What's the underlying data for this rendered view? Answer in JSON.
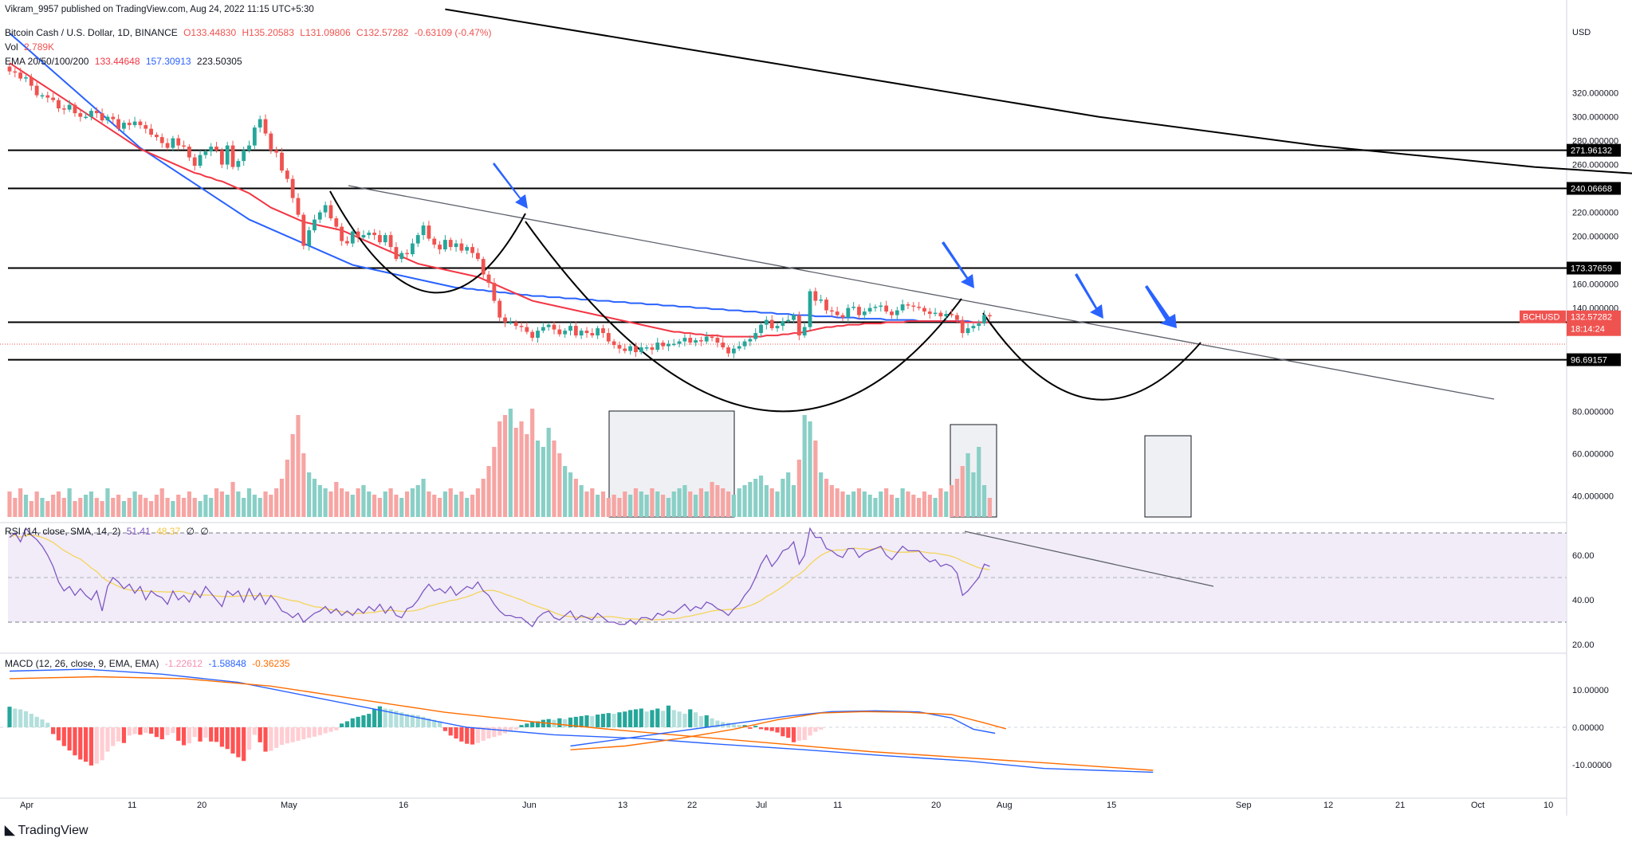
{
  "header": {
    "publisher": "Vikram_9957 published on TradingView.com, Aug 24, 2022 11:15 UTC+5:30",
    "symbol_line": "Bitcoin Cash / U.S. Dollar, 1D, BINANCE",
    "ohlc": {
      "o": "O133.44830",
      "h": "H135.20583",
      "l": "L131.09806",
      "c": "C132.57282",
      "chg": "-0.63109 (-0.47%)"
    },
    "vol_label": "Vol",
    "vol_value": "2.789K",
    "ema_label": "EMA 20/50/100/200",
    "ema_values": [
      "133.44648",
      "157.30913",
      "223.50305"
    ]
  },
  "colors": {
    "up": "#26a69a",
    "down": "#ef5350",
    "ema50": "#f23645",
    "ema100": "#2962ff",
    "ema200": "#000000",
    "arrow": "#2962ff",
    "rsi_line": "#7e57c2",
    "rsi_sma": "#f5d45a",
    "macd_line": "#2962ff",
    "signal_line": "#ff6d00",
    "rsi_band": "#ede7f6"
  },
  "price_axis": {
    "currency": "USD",
    "ticks": [
      "320.000000",
      "300.000000",
      "280.000000",
      "260.000000",
      "220.000000",
      "200.000000",
      "160.000000",
      "140.000000",
      "80.000000",
      "60.000000",
      "40.000000"
    ],
    "levels": [
      "271.96132",
      "240.06668",
      "173.37659",
      "128.09591",
      "96.69157"
    ],
    "current_symbol": "BCHUSD",
    "current_price": "132.57282",
    "countdown": "18:14:24"
  },
  "rsi": {
    "legend": "RSI (14, close, SMA, 14, 2)",
    "values": [
      "51.41",
      "48.37",
      "∅",
      "∅"
    ],
    "ticks": [
      "60.00",
      "40.00",
      "20.00"
    ]
  },
  "macd": {
    "legend": "MACD (12, 26, close, 9, EMA, EMA)",
    "values": [
      "-1.22612",
      "-1.58848",
      "-0.36235"
    ],
    "ticks": [
      "10.00000",
      "0.00000",
      "-10.00000"
    ]
  },
  "time_axis": [
    "Apr",
    "11",
    "20",
    "May",
    "16",
    "Jun",
    "13",
    "22",
    "Jul",
    "11",
    "20",
    "Aug",
    "15",
    "Sep",
    "12",
    "21",
    "Oct",
    "10"
  ],
  "footer": {
    "brand": "TradingView"
  },
  "chart_data": {
    "type": "candlestick",
    "title": "Bitcoin Cash / U.S. Dollar, 1D, BINANCE",
    "ylim": [
      85,
      325
    ],
    "horizontal_levels": [
      271.96132,
      240.06668,
      173.37659,
      128.09591,
      96.69157
    ],
    "current_price": 132.57282,
    "closes": [
      338,
      337,
      332,
      333,
      326,
      318,
      318,
      316,
      314,
      307,
      306,
      310,
      303,
      300,
      300,
      305,
      303,
      297,
      300,
      298,
      290,
      295,
      293,
      296,
      293,
      290,
      285,
      283,
      278,
      274,
      282,
      276,
      275,
      266,
      259,
      268,
      271,
      275,
      272,
      260,
      276,
      258,
      263,
      272,
      276,
      291,
      298,
      286,
      272,
      270,
      255,
      248,
      232,
      218,
      192,
      205,
      214,
      220,
      226,
      215,
      208,
      196,
      194,
      204,
      199,
      201,
      203,
      201,
      195,
      201,
      191,
      181,
      186,
      185,
      194,
      201,
      209,
      198,
      193,
      189,
      197,
      191,
      194,
      188,
      191,
      186,
      181,
      168,
      161,
      146,
      132,
      128,
      128,
      125,
      124,
      120,
      115,
      121,
      124,
      126,
      122,
      118,
      121,
      125,
      117,
      121,
      119,
      117,
      123,
      119,
      112,
      109,
      106,
      104,
      108,
      103,
      107,
      107,
      105,
      111,
      108,
      110,
      110,
      112,
      115,
      111,
      113,
      112,
      116,
      115,
      111,
      107,
      102,
      106,
      108,
      112,
      114,
      119,
      126,
      130,
      123,
      125,
      129,
      130,
      134,
      117,
      124,
      154,
      146,
      147,
      138,
      137,
      134,
      132,
      140,
      141,
      134,
      137,
      140,
      141,
      142,
      137,
      134,
      138,
      143,
      142,
      141,
      140,
      137,
      135,
      136,
      133,
      135,
      134,
      130,
      119,
      123,
      125,
      127,
      134,
      133
    ],
    "ema50": [
      345,
      342,
      339,
      336,
      333,
      330,
      327,
      324,
      321,
      318,
      315,
      312,
      309,
      306,
      303,
      300,
      297,
      294,
      291,
      288,
      285,
      282,
      279,
      276,
      273,
      271,
      269,
      267,
      265,
      263,
      261,
      259,
      257,
      255,
      253,
      252,
      250,
      249,
      247,
      246,
      244,
      242,
      240,
      238,
      236,
      233,
      230,
      227,
      224,
      222,
      220,
      218,
      216,
      214,
      212,
      211,
      210,
      209,
      208,
      207,
      206,
      205,
      203,
      201,
      199,
      197,
      195,
      193,
      191,
      189,
      187,
      185,
      183,
      181,
      179,
      177,
      176,
      175,
      174,
      173,
      172,
      171,
      170,
      169,
      168,
      167,
      166,
      164,
      162,
      160,
      158,
      156,
      154,
      152,
      150,
      148,
      146,
      145,
      144,
      143,
      142,
      141,
      140,
      139,
      138,
      137,
      136,
      135,
      134,
      133,
      132,
      131,
      130,
      129,
      128,
      127,
      126,
      125,
      124,
      123,
      122,
      121,
      120,
      120,
      119,
      119,
      118,
      118,
      117,
      117,
      117,
      116,
      116,
      116,
      116,
      116,
      116,
      116,
      116,
      117,
      117,
      117,
      118,
      118,
      119,
      119,
      120,
      121,
      122,
      123,
      124,
      124,
      125,
      125,
      126,
      126,
      126,
      127,
      127,
      127,
      127,
      128,
      128,
      128,
      128,
      129,
      129,
      129,
      129,
      129,
      129,
      129,
      129,
      129,
      129,
      128,
      128,
      128,
      128,
      128,
      128
    ],
    "ema100": [
      370,
      366,
      362,
      358,
      354,
      350,
      346,
      342,
      338,
      334,
      330,
      326,
      322,
      318,
      314,
      310,
      306,
      302,
      298,
      294,
      290,
      286,
      282,
      278,
      274,
      271,
      268,
      265,
      262,
      259,
      256,
      253,
      250,
      247,
      244,
      241,
      238,
      235,
      232,
      229,
      226,
      223,
      220,
      217,
      214,
      212,
      210,
      208,
      206,
      204,
      202,
      200,
      198,
      196,
      194,
      192,
      190,
      188,
      186,
      184,
      182,
      180,
      178,
      176,
      175,
      174,
      173,
      172,
      171,
      170,
      169,
      168,
      167,
      166,
      165,
      164,
      163,
      162,
      161,
      160,
      159,
      158,
      157,
      157,
      156,
      156,
      155,
      155,
      154,
      154,
      153,
      153,
      152,
      152,
      151,
      151,
      150,
      150,
      150,
      149,
      149,
      149,
      148,
      148,
      148,
      147,
      147,
      147,
      146,
      146,
      146,
      145,
      145,
      145,
      144,
      144,
      144,
      143,
      143,
      143,
      142,
      142,
      142,
      141,
      141,
      141,
      140,
      140,
      140,
      139,
      139,
      139,
      138,
      138,
      138,
      137,
      137,
      137,
      136,
      136,
      136,
      135,
      135,
      135,
      134,
      134,
      134,
      134,
      133,
      133,
      133,
      133,
      132,
      132,
      132,
      132,
      131,
      131,
      131,
      131,
      131,
      130,
      130,
      130,
      130,
      130,
      130,
      129,
      129,
      129,
      129,
      129,
      129,
      129,
      129,
      129,
      129,
      128,
      128,
      128,
      128
    ],
    "ema200_points": [
      [
        80,
        390
      ],
      [
        120,
        360
      ],
      [
        160,
        330
      ],
      [
        200,
        300
      ],
      [
        240,
        276
      ],
      [
        280,
        258
      ],
      [
        320,
        246
      ],
      [
        360,
        236
      ],
      [
        400,
        230
      ],
      [
        444,
        224
      ]
    ],
    "rsi_line": [
      68,
      70,
      66,
      72,
      69,
      67,
      64,
      60,
      55,
      48,
      44,
      46,
      42,
      45,
      42,
      40,
      44,
      35,
      46,
      50,
      48,
      45,
      47,
      43,
      46,
      40,
      44,
      42,
      41,
      38,
      44,
      40,
      42,
      39,
      44,
      41,
      46,
      43,
      40,
      37,
      44,
      42,
      44,
      39,
      45,
      40,
      43,
      38,
      42,
      39,
      35,
      34,
      32,
      34,
      30,
      32,
      34,
      35,
      37,
      34,
      36,
      33,
      35,
      33,
      36,
      34,
      37,
      35,
      38,
      34,
      37,
      33,
      32,
      36,
      37,
      40,
      44,
      47,
      44,
      45,
      43,
      46,
      42,
      44,
      46,
      45,
      48,
      44,
      42,
      38,
      35,
      33,
      33,
      32,
      32,
      30,
      28,
      32,
      34,
      35,
      32,
      31,
      33,
      35,
      31,
      33,
      32,
      31,
      34,
      32,
      30,
      30,
      29,
      29,
      31,
      29,
      32,
      32,
      31,
      34,
      33,
      35,
      34,
      36,
      38,
      35,
      37,
      36,
      39,
      38,
      36,
      35,
      33,
      36,
      38,
      42,
      45,
      50,
      56,
      60,
      55,
      58,
      62,
      63,
      66,
      56,
      60,
      72,
      68,
      68,
      63,
      62,
      60,
      59,
      63,
      63,
      59,
      61,
      62,
      63,
      64,
      60,
      58,
      61,
      64,
      62,
      62,
      62,
      59,
      57,
      58,
      55,
      56,
      55,
      52,
      42,
      44,
      47,
      50,
      56,
      55
    ],
    "volume": [
      8,
      6,
      9,
      7,
      5,
      8,
      6,
      5,
      7,
      8,
      6,
      9,
      5,
      6,
      7,
      8,
      6,
      5,
      9,
      6,
      7,
      5,
      6,
      8,
      7,
      6,
      5,
      7,
      9,
      6,
      5,
      7,
      6,
      8,
      6,
      5,
      7,
      6,
      9,
      8,
      7,
      11,
      8,
      6,
      9,
      7,
      6,
      8,
      7,
      9,
      12,
      18,
      26,
      32,
      20,
      14,
      12,
      10,
      9,
      8,
      11,
      9,
      8,
      7,
      9,
      10,
      8,
      7,
      6,
      8,
      9,
      7,
      6,
      8,
      9,
      10,
      12,
      8,
      7,
      6,
      8,
      9,
      7,
      8,
      6,
      7,
      9,
      12,
      16,
      22,
      30,
      32,
      34,
      28,
      30,
      26,
      34,
      24,
      22,
      28,
      24,
      20,
      16,
      14,
      12,
      10,
      8,
      9,
      7,
      8,
      6,
      7,
      6,
      8,
      7,
      9,
      8,
      7,
      9,
      8,
      7,
      6,
      8,
      9,
      10,
      8,
      7,
      9,
      8,
      11,
      10,
      9,
      8,
      7,
      9,
      10,
      11,
      12,
      13,
      10,
      9,
      8,
      12,
      14,
      10,
      18,
      32,
      30,
      24,
      14,
      12,
      10,
      9,
      8,
      7,
      8,
      9,
      8,
      7,
      6,
      8,
      9,
      7,
      6,
      9,
      8,
      7,
      6,
      8,
      7,
      6,
      9,
      8,
      10,
      12,
      16,
      20,
      14,
      22,
      10,
      6
    ],
    "macd_hist": [
      5.5,
      5,
      4.8,
      4.3,
      3.6,
      2.8,
      2.1,
      1.2,
      -1.8,
      -3.5,
      -5,
      -6.2,
      -7.5,
      -8.6,
      -9.2,
      -10.2,
      -9.7,
      -8.8,
      -6.5,
      -5,
      -3.8,
      -4.2,
      -2.2,
      -1.8,
      -2,
      -1.5,
      -1.7,
      -2.6,
      -3.2,
      -2.1,
      -1.5,
      -3.6,
      -4.8,
      -4.3,
      -2.6,
      -3.8,
      -2.8,
      -3.8,
      -3.9,
      -5.2,
      -5.8,
      -7,
      -8,
      -9,
      -6,
      -2,
      -4,
      -6.5,
      -6.3,
      -5.5,
      -4.7,
      -4.3,
      -4,
      -3.6,
      -3.2,
      -2.8,
      -2.5,
      -2.1,
      -1.6,
      -1.2,
      -0.8,
      1,
      1.6,
      2.4,
      2.8,
      3.2,
      3.6,
      4.8,
      5.6,
      5,
      4.8,
      4.4,
      4,
      3.6,
      3.4,
      3.2,
      2.8,
      2.4,
      2,
      1.6,
      -1,
      -2.2,
      -3,
      -3.8,
      -4.4,
      -4.6,
      -4.2,
      -3.6,
      -3,
      -2.6,
      -2.2,
      -1.6,
      -1,
      -0.6,
      0.6,
      1,
      1.4,
      1.6,
      2,
      2.2,
      2,
      2.4,
      2.2,
      2.6,
      2.8,
      3,
      3.2,
      3,
      3.4,
      3.6,
      3.8,
      3.6,
      4,
      4.2,
      4.6,
      4.8,
      5,
      4.2,
      4.6,
      5,
      4.4,
      5.8,
      4.6,
      4.2,
      3.6,
      4.8,
      4,
      3,
      3.2,
      2.4,
      1.8,
      1.4,
      1.2,
      0.8,
      0.6,
      0.6,
      -0.4,
      0.4,
      -0.5,
      -0.8,
      -1,
      -1.4,
      -2.4,
      -2.8,
      -4,
      -3.6,
      -3.4,
      -2.2,
      -1.2,
      -0.6
    ],
    "macd_line_points": [
      [
        0,
        15
      ],
      [
        14,
        15.5
      ],
      [
        28,
        14.2
      ],
      [
        42,
        12
      ],
      [
        56,
        8
      ],
      [
        70,
        4
      ],
      [
        84,
        0
      ],
      [
        100,
        -2
      ],
      [
        116,
        -3
      ],
      [
        130,
        -4.5
      ],
      [
        146,
        -6
      ],
      [
        160,
        -7.5
      ],
      [
        176,
        -9
      ],
      [
        190,
        -11
      ],
      [
        210,
        -12
      ]
    ],
    "signal_line_points": [
      [
        0,
        13
      ],
      [
        16,
        13.5
      ],
      [
        32,
        13
      ],
      [
        48,
        11
      ],
      [
        64,
        7.5
      ],
      [
        80,
        4
      ],
      [
        96,
        1.5
      ],
      [
        110,
        -0.5
      ],
      [
        126,
        -2.5
      ],
      [
        142,
        -4.5
      ],
      [
        158,
        -6.5
      ],
      [
        174,
        -8
      ],
      [
        190,
        -9.5
      ],
      [
        210,
        -11.5
      ]
    ]
  }
}
